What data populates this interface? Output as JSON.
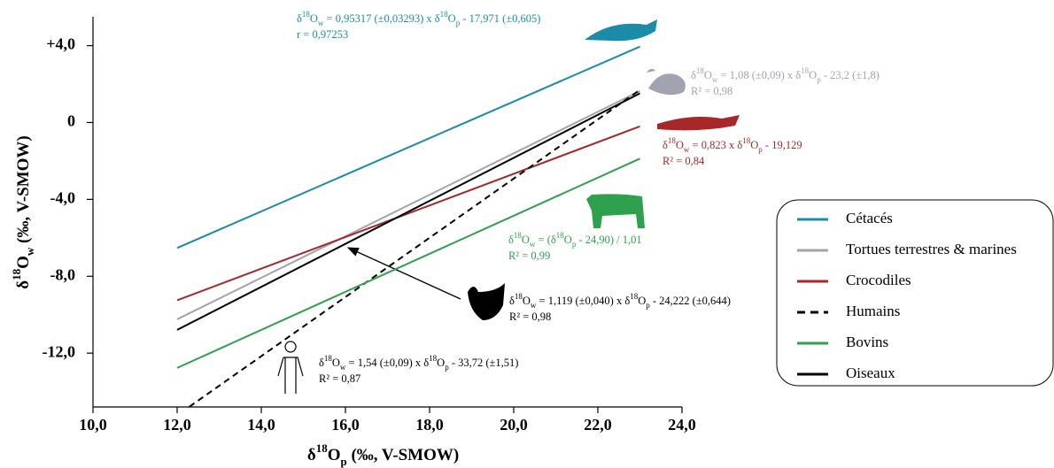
{
  "chart_data": {
    "type": "line",
    "xlabel": [
      {
        "text": "δ"
      },
      {
        "text": "18",
        "shift": "super"
      },
      {
        "text": "O"
      },
      {
        "text": "p",
        "shift": "sub"
      },
      {
        "text": " (‰, V-SMOW)"
      }
    ],
    "ylabel": [
      {
        "text": "δ"
      },
      {
        "text": "18",
        "shift": "super"
      },
      {
        "text": "O"
      },
      {
        "text": "w",
        "shift": "sub"
      },
      {
        "text": " (‰, V-SMOW)"
      }
    ],
    "xlim": [
      10,
      24
    ],
    "ylim": [
      -14.8,
      5.5
    ],
    "xticks": [
      {
        "value": 10,
        "label": "10,0"
      },
      {
        "value": 12,
        "label": "12,0"
      },
      {
        "value": 14,
        "label": "14,0"
      },
      {
        "value": 16,
        "label": "16,0"
      },
      {
        "value": 18,
        "label": "18,0"
      },
      {
        "value": 20,
        "label": "20,0"
      },
      {
        "value": 22,
        "label": "22,0"
      },
      {
        "value": 24,
        "label": "24,0"
      }
    ],
    "yticks": [
      {
        "value": 4,
        "label": "+4,0"
      },
      0,
      {
        "value": -4,
        "label": "-4,0"
      },
      {
        "value": -8,
        "label": "-8,0"
      },
      {
        "value": -12,
        "label": "-12,0"
      }
    ],
    "series": [
      {
        "name": "Cétacés",
        "color": "#1a8ca8",
        "x": [
          12,
          23
        ],
        "values": [
          -6.53,
          3.95
        ]
      },
      {
        "name": "Tortues terrestres & marines",
        "color": "#a0a4b0",
        "x": [
          12,
          23
        ],
        "values": [
          -10.24,
          1.64
        ]
      },
      {
        "name": "Crocodiles",
        "color": "#a8282a",
        "x": [
          12,
          23
        ],
        "values": [
          -9.25,
          -0.2
        ]
      },
      {
        "name": "Humains",
        "color": "#000000",
        "dashed": true,
        "x": [
          12.29,
          23
        ],
        "values": [
          -14.79,
          1.7
        ]
      },
      {
        "name": "Bovins",
        "color": "#2ea04e",
        "x": [
          12,
          23
        ],
        "values": [
          -12.77,
          -1.88
        ]
      },
      {
        "name": "Oiseaux",
        "color": "#000000",
        "x": [
          12,
          23
        ],
        "values": [
          -10.79,
          1.52
        ]
      }
    ],
    "annotations": [
      {
        "color": "#1a8ca8",
        "lines": [
          [
            {
              "text": "δ"
            },
            {
              "text": "18",
              "shift": "super"
            },
            {
              "text": "O"
            },
            {
              "text": "w",
              "shift": "sub"
            },
            {
              "text": " = 0,95317 (±0,03293) x δ"
            },
            {
              "text": "18",
              "shift": "super"
            },
            {
              "text": "O"
            },
            {
              "text": "p",
              "shift": "sub"
            },
            {
              "text": " - 17,971 (±0,605)"
            }
          ],
          [
            {
              "text": "r = 0,97253"
            }
          ]
        ]
      },
      {
        "color": "#a0a4b0",
        "lines": [
          [
            {
              "text": "δ"
            },
            {
              "text": "18",
              "shift": "super"
            },
            {
              "text": "O"
            },
            {
              "text": "w",
              "shift": "sub"
            },
            {
              "text": " = 1,08 (±0,09) x δ"
            },
            {
              "text": "18",
              "shift": "super"
            },
            {
              "text": "O"
            },
            {
              "text": "p",
              "shift": "sub"
            },
            {
              "text": " - 23,2 (±1,8)"
            }
          ],
          [
            {
              "text": "R² = 0,98"
            }
          ]
        ]
      },
      {
        "color": "#a8282a",
        "lines": [
          [
            {
              "text": "δ"
            },
            {
              "text": "18",
              "shift": "super"
            },
            {
              "text": "O"
            },
            {
              "text": "w",
              "shift": "sub"
            },
            {
              "text": " = 0,823 x δ"
            },
            {
              "text": "18",
              "shift": "super"
            },
            {
              "text": "O"
            },
            {
              "text": "p",
              "shift": "sub"
            },
            {
              "text": " - 19,129"
            }
          ],
          [
            {
              "text": "R² = 0,84"
            }
          ]
        ]
      },
      {
        "color": "#2ea04e",
        "lines": [
          [
            {
              "text": "δ"
            },
            {
              "text": "18",
              "shift": "super"
            },
            {
              "text": "O"
            },
            {
              "text": "w",
              "shift": "sub"
            },
            {
              "text": " = (δ"
            },
            {
              "text": "18",
              "shift": "super"
            },
            {
              "text": "O"
            },
            {
              "text": "p",
              "shift": "sub"
            },
            {
              "text": " - 24,90) / 1,01"
            }
          ],
          [
            {
              "text": "R² = 0,99"
            }
          ]
        ]
      },
      {
        "color": "#000000",
        "lines": [
          [
            {
              "text": "δ"
            },
            {
              "text": "18",
              "shift": "super"
            },
            {
              "text": "O"
            },
            {
              "text": "w",
              "shift": "sub"
            },
            {
              "text": " = 1,119 (±0,040) x δ"
            },
            {
              "text": "18",
              "shift": "super"
            },
            {
              "text": "O"
            },
            {
              "text": "p",
              "shift": "sub"
            },
            {
              "text": " - 24,222 (±0,644)"
            }
          ],
          [
            {
              "text": "R² = 0,98"
            }
          ]
        ]
      },
      {
        "color": "#000000",
        "lines": [
          [
            {
              "text": "δ"
            },
            {
              "text": "18",
              "shift": "super"
            },
            {
              "text": "O"
            },
            {
              "text": "w",
              "shift": "sub"
            },
            {
              "text": " = 1,54 (±0,09) x δ"
            },
            {
              "text": "18",
              "shift": "super"
            },
            {
              "text": "O"
            },
            {
              "text": "p",
              "shift": "sub"
            },
            {
              "text": " - 33,72 (±1,51)"
            }
          ],
          [
            {
              "text": "R² = 0,87"
            }
          ]
        ]
      }
    ]
  }
}
